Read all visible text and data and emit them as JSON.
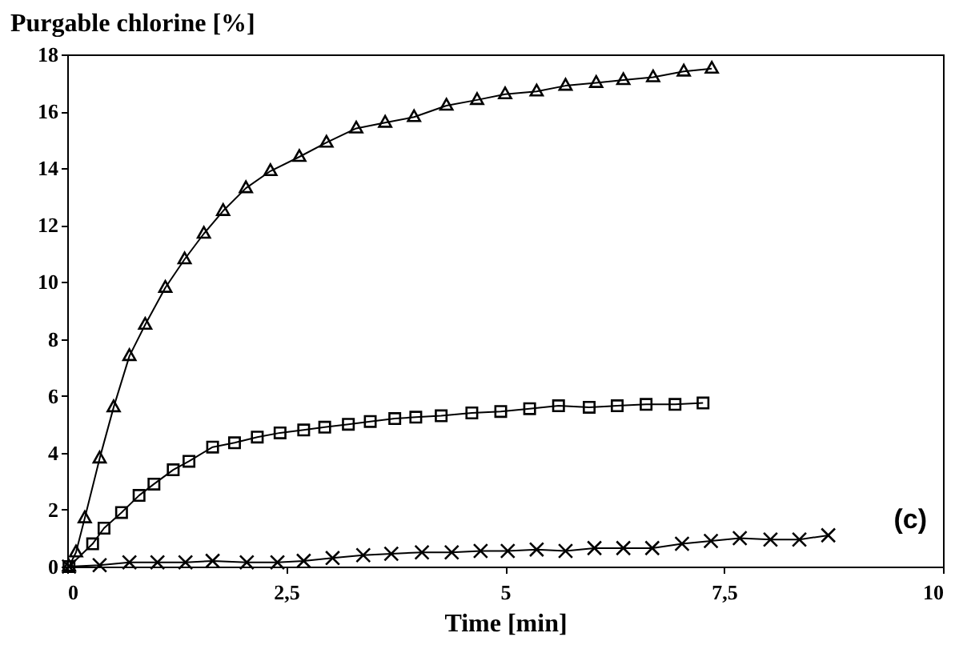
{
  "chart_data": {
    "type": "line",
    "xlabel": "Time [min]",
    "ylabel": "Purgable chlorine [%]",
    "annotations": [
      "(c)"
    ],
    "xlim": [
      0,
      10
    ],
    "xticks": [
      0,
      {
        "value": 2.5,
        "label": "2,5"
      },
      5,
      {
        "value": 7.5,
        "label": "7,5"
      },
      10
    ],
    "ylim": [
      0,
      18
    ],
    "yticks": [
      0,
      2,
      4,
      6,
      8,
      10,
      12,
      14,
      16,
      18
    ],
    "grid": false,
    "series": [
      {
        "color": "#000000",
        "marker": "triangle",
        "x": [
          0.02,
          0.1,
          0.2,
          0.37,
          0.53,
          0.71,
          0.89,
          1.12,
          1.34,
          1.56,
          1.78,
          2.04,
          2.32,
          2.65,
          2.96,
          3.3,
          3.63,
          3.96,
          4.33,
          4.68,
          5.0,
          5.36,
          5.69,
          6.04,
          6.35,
          6.69,
          7.04,
          7.36
        ],
        "values": [
          0,
          0.5,
          1.7,
          3.8,
          5.6,
          7.4,
          8.5,
          9.8,
          10.8,
          11.7,
          12.5,
          13.3,
          13.9,
          14.4,
          14.9,
          15.4,
          15.6,
          15.8,
          16.2,
          16.4,
          16.6,
          16.7,
          16.9,
          17.0,
          17.1,
          17.2,
          17.4,
          17.5
        ]
      },
      {
        "color": "#000000",
        "marker": "square",
        "x": [
          0.02,
          0.29,
          0.42,
          0.62,
          0.82,
          0.99,
          1.21,
          1.39,
          1.66,
          1.91,
          2.17,
          2.43,
          2.7,
          2.94,
          3.21,
          3.46,
          3.74,
          3.98,
          4.27,
          4.62,
          4.95,
          5.28,
          5.61,
          5.96,
          6.28,
          6.61,
          6.94,
          7.26
        ],
        "values": [
          0,
          0.8,
          1.35,
          1.9,
          2.5,
          2.9,
          3.4,
          3.7,
          4.2,
          4.35,
          4.55,
          4.7,
          4.8,
          4.9,
          5.0,
          5.1,
          5.2,
          5.25,
          5.3,
          5.4,
          5.45,
          5.55,
          5.65,
          5.6,
          5.65,
          5.7,
          5.7,
          5.75
        ]
      },
      {
        "color": "#000000",
        "marker": "cross",
        "x": [
          0.02,
          0.37,
          0.71,
          1.03,
          1.35,
          1.66,
          2.05,
          2.4,
          2.7,
          3.03,
          3.38,
          3.7,
          4.05,
          4.39,
          4.72,
          5.03,
          5.36,
          5.69,
          6.02,
          6.35,
          6.68,
          7.02,
          7.35,
          7.68,
          8.03,
          8.36,
          8.69
        ],
        "values": [
          0,
          0.05,
          0.15,
          0.15,
          0.15,
          0.2,
          0.15,
          0.15,
          0.2,
          0.3,
          0.4,
          0.45,
          0.5,
          0.5,
          0.55,
          0.55,
          0.6,
          0.55,
          0.65,
          0.65,
          0.65,
          0.8,
          0.9,
          1.0,
          0.95,
          0.95,
          1.1
        ]
      }
    ]
  }
}
